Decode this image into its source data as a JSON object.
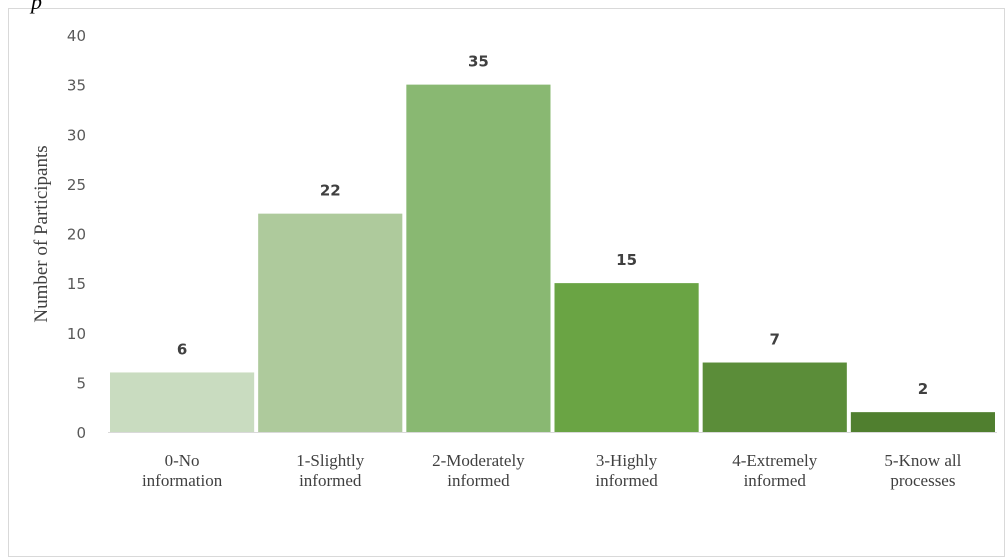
{
  "caption": "p",
  "chart_data": {
    "type": "bar",
    "title": "",
    "xlabel": "",
    "ylabel": "Number of Participants",
    "ylim": [
      0,
      40
    ],
    "yticks": [
      0,
      5,
      10,
      15,
      20,
      25,
      30,
      35,
      40
    ],
    "grid": false,
    "legend": "none",
    "categories": [
      "0-No information",
      "1-Slightly informed",
      "2-Moderately informed",
      "3-Highly informed",
      "4-Extremely informed",
      "5-Know all processes"
    ],
    "category_lines": [
      [
        "0-No",
        "information"
      ],
      [
        "1-Slightly",
        "informed"
      ],
      [
        "2-Moderately",
        "informed"
      ],
      [
        "3-Highly",
        "informed"
      ],
      [
        "4-Extremely",
        "informed"
      ],
      [
        "5-Know all",
        "processes"
      ]
    ],
    "values": [
      6,
      22,
      35,
      15,
      7,
      2
    ],
    "colors": [
      "#c9dcc0",
      "#aeca9c",
      "#89b872",
      "#6aa444",
      "#5b8d39",
      "#507f2f"
    ],
    "axis_color": "#d9d9d9"
  }
}
